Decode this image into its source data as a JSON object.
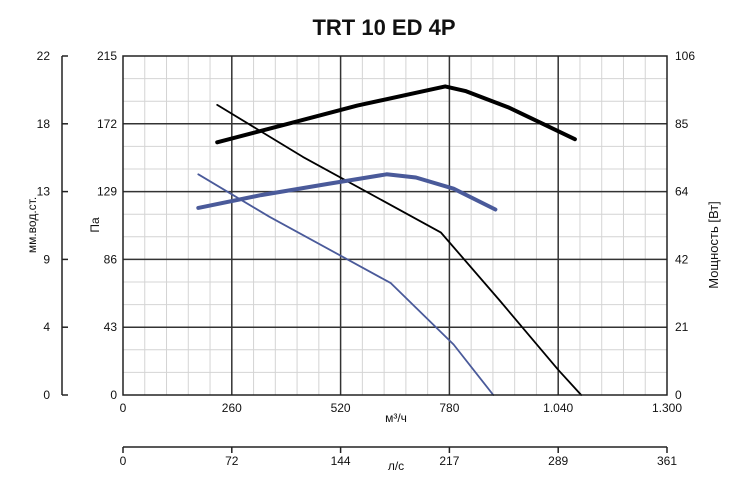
{
  "chart_data": {
    "type": "line",
    "title": "TRT 10 ED 4P",
    "axes": {
      "x_bottom": {
        "label": "м³/ч",
        "range": [
          0,
          1300
        ],
        "ticks": [
          "0",
          "260",
          "520",
          "780",
          "1.040",
          "1.300"
        ]
      },
      "x_secondary": {
        "label": "л/с",
        "range": [
          0,
          361
        ],
        "ticks": [
          "0",
          "72",
          "144",
          "217",
          "289",
          "361"
        ]
      },
      "y_pa": {
        "label": "Па",
        "range": [
          0,
          215
        ],
        "ticks": [
          "0",
          "43",
          "86",
          "129",
          "172",
          "215"
        ]
      },
      "y_mm": {
        "label": "мм.вод.ст.",
        "ticks": [
          "0",
          "4",
          "9",
          "13",
          "18",
          "22"
        ]
      },
      "y_power": {
        "label": "Мощность [Вт]",
        "range": [
          0,
          106
        ],
        "ticks": [
          "0",
          "21",
          "42",
          "64",
          "85",
          "106"
        ]
      }
    },
    "grid": {
      "major": true,
      "minor": true
    },
    "series": [
      {
        "id": "pressure-high",
        "axis": "y_pa",
        "color": "#000000",
        "width": 1.8,
        "points": [
          [
            225,
            184
          ],
          [
            430,
            151
          ],
          [
            760,
            103
          ],
          [
            900,
            60
          ],
          [
            1040,
            16
          ],
          [
            1095,
            0
          ]
        ]
      },
      {
        "id": "power-high",
        "axis": "y_power",
        "color": "#000000",
        "width": 4,
        "points": [
          [
            225,
            79
          ],
          [
            400,
            85
          ],
          [
            560,
            90.5
          ],
          [
            700,
            94.5
          ],
          [
            770,
            96.5
          ],
          [
            820,
            95
          ],
          [
            920,
            90
          ],
          [
            1000,
            85
          ],
          [
            1080,
            80
          ]
        ]
      },
      {
        "id": "pressure-low",
        "axis": "y_pa",
        "color": "#4a5a9a",
        "width": 1.8,
        "points": [
          [
            180,
            140
          ],
          [
            350,
            113
          ],
          [
            640,
            71
          ],
          [
            790,
            32
          ],
          [
            885,
            0
          ]
        ]
      },
      {
        "id": "power-low",
        "axis": "y_power",
        "color": "#4a5a9a",
        "width": 4,
        "points": [
          [
            180,
            58.5
          ],
          [
            330,
            62.5
          ],
          [
            490,
            66
          ],
          [
            630,
            69
          ],
          [
            700,
            68
          ],
          [
            790,
            64.5
          ],
          [
            890,
            58
          ]
        ]
      }
    ]
  }
}
